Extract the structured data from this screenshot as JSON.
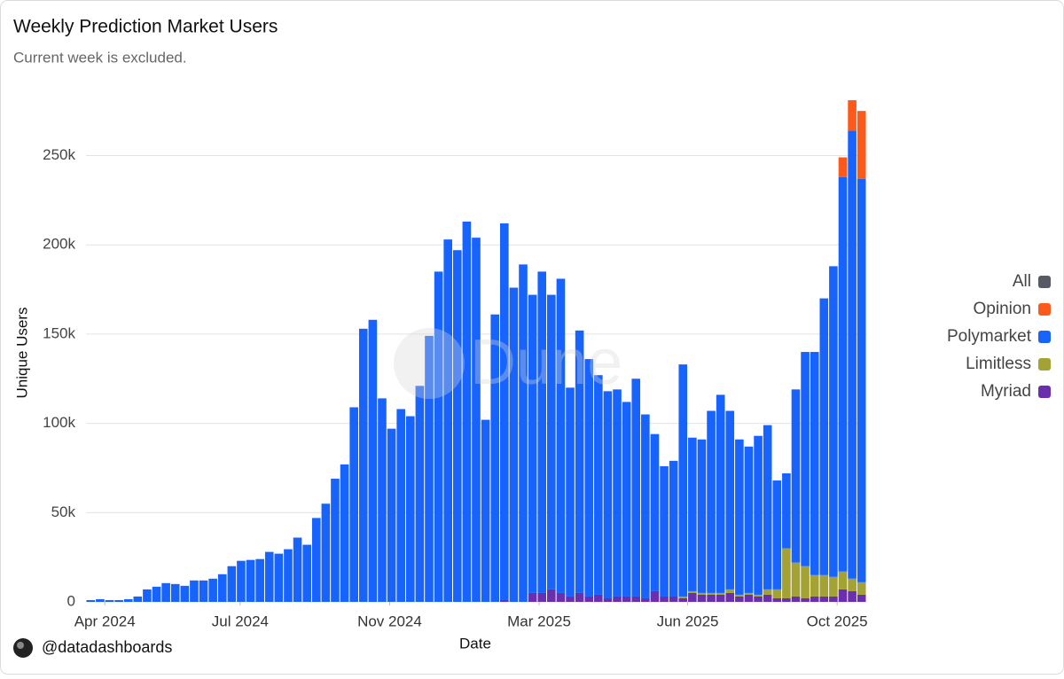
{
  "chart_data": {
    "type": "stacked_bar",
    "title": "Weekly Prediction Market Users",
    "subtitle": "Current week is excluded.",
    "x_label": "Date",
    "y_label": "Unique Users",
    "watermark": "Dune",
    "credit": "@datadashboards",
    "legend": "right",
    "grid": true,
    "xlim": [
      -0.5,
      82.5
    ],
    "xticks": [
      {
        "value": 1.5,
        "label": "Apr 2024"
      },
      {
        "value": 15.9,
        "label": "Jul 2024"
      },
      {
        "value": 31.8,
        "label": "Nov 2024"
      },
      {
        "value": 47.7,
        "label": "Mar 2025"
      },
      {
        "value": 63.5,
        "label": "Jun 2025"
      },
      {
        "value": 79.4,
        "label": "Oct 2025"
      }
    ],
    "ylim": [
      0,
      285000
    ],
    "yticks": [
      0,
      {
        "value": 50000,
        "label": "50k"
      },
      {
        "value": 100000,
        "label": "100k"
      },
      {
        "value": 150000,
        "label": "150k"
      },
      {
        "value": 200000,
        "label": "200k"
      },
      {
        "value": 250000,
        "label": "250k"
      }
    ],
    "series": [
      {
        "name": "All",
        "color": "#555a63",
        "values": [
          null,
          null,
          null,
          null,
          null,
          null,
          null,
          null,
          null,
          null,
          null,
          null,
          null,
          null,
          null,
          null,
          null,
          null,
          null,
          null,
          null,
          null,
          null,
          null,
          null,
          null,
          null,
          null,
          null,
          null,
          null,
          null,
          null,
          null,
          null,
          null,
          null,
          null,
          null,
          null,
          null,
          null,
          null,
          null,
          null,
          null,
          null,
          null,
          null,
          null,
          null,
          null,
          null,
          null,
          null,
          null,
          null,
          null,
          null,
          null,
          null,
          null,
          null,
          null,
          null,
          null,
          null,
          null,
          null,
          null,
          null,
          null,
          null,
          null,
          null,
          null,
          null,
          null,
          null,
          null,
          null,
          null,
          null
        ]
      },
      {
        "name": "Opinion",
        "color": "#fb5a1b",
        "values": [
          0,
          0,
          0,
          0,
          0,
          0,
          0,
          0,
          0,
          0,
          0,
          0,
          0,
          0,
          0,
          0,
          0,
          0,
          0,
          0,
          0,
          0,
          0,
          0,
          0,
          0,
          0,
          0,
          0,
          0,
          0,
          0,
          0,
          0,
          0,
          0,
          0,
          0,
          0,
          0,
          0,
          0,
          0,
          0,
          0,
          0,
          0,
          0,
          0,
          0,
          0,
          0,
          0,
          0,
          0,
          0,
          0,
          0,
          0,
          0,
          0,
          0,
          0,
          0,
          0,
          0,
          0,
          0,
          0,
          0,
          0,
          0,
          0,
          0,
          0,
          0,
          0,
          0,
          0,
          0,
          11000,
          17000,
          38000
        ]
      },
      {
        "name": "Polymarket",
        "color": "#1763fb",
        "values": [
          1000,
          1500,
          1000,
          1000,
          1500,
          3000,
          7000,
          8500,
          10500,
          10000,
          9000,
          12000,
          12000,
          13000,
          15500,
          20000,
          23000,
          23500,
          24000,
          28000,
          27000,
          29500,
          36000,
          32000,
          47000,
          55000,
          69000,
          77000,
          109000,
          153000,
          158000,
          114000,
          97000,
          108000,
          104000,
          121000,
          149000,
          185000,
          203000,
          197000,
          213000,
          204000,
          102000,
          161000,
          211000,
          176000,
          189000,
          167000,
          180000,
          165000,
          176000,
          117000,
          147000,
          133000,
          123000,
          116000,
          116000,
          109000,
          122000,
          103000,
          88000,
          73000,
          76000,
          130000,
          86000,
          86000,
          102000,
          111000,
          100000,
          87000,
          82000,
          89000,
          92000,
          61000,
          42000,
          97000,
          120000,
          125000,
          155000,
          174000,
          221000,
          251000,
          226000
        ]
      },
      {
        "name": "Limitless",
        "color": "#a4a234",
        "values": [
          0,
          0,
          0,
          0,
          0,
          0,
          0,
          0,
          0,
          0,
          0,
          0,
          0,
          0,
          0,
          0,
          0,
          0,
          0,
          0,
          0,
          0,
          0,
          0,
          0,
          0,
          0,
          0,
          0,
          0,
          0,
          0,
          0,
          0,
          0,
          0,
          0,
          0,
          0,
          0,
          0,
          0,
          0,
          0,
          0,
          0,
          0,
          0,
          0,
          0,
          0,
          0,
          0,
          0,
          0,
          0,
          0,
          0,
          0,
          0,
          0,
          0,
          0,
          1000,
          1000,
          1000,
          1000,
          1000,
          2000,
          1000,
          1000,
          1000,
          3000,
          5000,
          28000,
          19000,
          18000,
          12000,
          12000,
          11000,
          10000,
          7000,
          7000
        ]
      },
      {
        "name": "Myriad",
        "color": "#6a2fad",
        "values": [
          0,
          0,
          0,
          0,
          0,
          0,
          0,
          0,
          0,
          0,
          0,
          0,
          0,
          0,
          0,
          0,
          0,
          0,
          0,
          0,
          0,
          0,
          0,
          0,
          0,
          0,
          0,
          0,
          0,
          0,
          0,
          0,
          0,
          0,
          0,
          0,
          0,
          0,
          0,
          0,
          0,
          0,
          0,
          0,
          1000,
          0,
          0,
          5000,
          5000,
          7000,
          5000,
          3000,
          5000,
          3000,
          4000,
          2000,
          3000,
          3000,
          3000,
          2000,
          6000,
          3000,
          3000,
          2000,
          5000,
          4000,
          4000,
          4000,
          5000,
          3000,
          4000,
          3000,
          4000,
          2000,
          2000,
          3000,
          2000,
          3000,
          3000,
          3000,
          7000,
          6000,
          4000
        ]
      }
    ]
  }
}
